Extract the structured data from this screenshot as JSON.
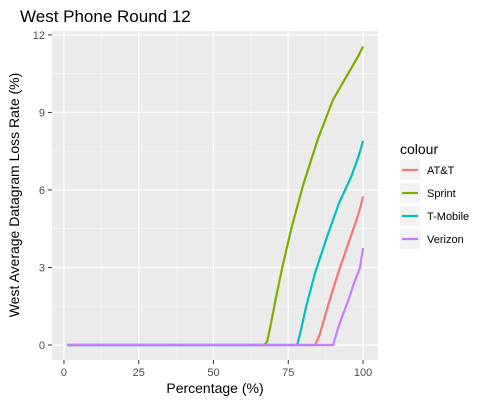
{
  "chart_data": {
    "type": "line",
    "title": "West Phone Round 12",
    "xlabel": "Percentage (%)",
    "ylabel": "West Average Datagram Loss Rate (%)",
    "xlim": [
      -4,
      105
    ],
    "ylim": [
      -0.58,
      12.15
    ],
    "x_ticks": [
      0,
      25,
      50,
      75,
      100
    ],
    "y_ticks": [
      0,
      3,
      6,
      9,
      12
    ],
    "x_tick_labels": [
      "0",
      "25",
      "50",
      "75",
      "100"
    ],
    "y_tick_labels": [
      "0",
      "3",
      "6",
      "9",
      "12"
    ],
    "grid": true,
    "legend": {
      "title": "colour",
      "position": "right"
    },
    "series": [
      {
        "name": "AT&T",
        "color": "#F8766D",
        "points": [
          [
            1,
            0
          ],
          [
            84,
            0
          ],
          [
            85.5,
            0.4
          ],
          [
            87,
            1.0
          ],
          [
            89,
            1.8
          ],
          [
            92,
            2.9
          ],
          [
            95,
            3.9
          ],
          [
            98,
            4.9
          ],
          [
            99.5,
            5.5
          ],
          [
            100,
            5.75
          ]
        ]
      },
      {
        "name": "Sprint",
        "color": "#7CAE00",
        "points": [
          [
            1,
            0
          ],
          [
            67,
            0
          ],
          [
            68,
            0.15
          ],
          [
            69.5,
            1.0
          ],
          [
            71,
            1.9
          ],
          [
            73,
            3.0
          ],
          [
            76,
            4.5
          ],
          [
            80,
            6.2
          ],
          [
            85,
            8.0
          ],
          [
            90,
            9.5
          ],
          [
            95,
            10.5
          ],
          [
            98.5,
            11.2
          ],
          [
            100,
            11.55
          ]
        ]
      },
      {
        "name": "T-Mobile",
        "color": "#00BFC4",
        "points": [
          [
            1,
            0
          ],
          [
            78,
            0
          ],
          [
            79.5,
            0.7
          ],
          [
            81,
            1.5
          ],
          [
            84,
            2.8
          ],
          [
            88,
            4.2
          ],
          [
            92,
            5.5
          ],
          [
            96,
            6.5
          ],
          [
            98.5,
            7.3
          ],
          [
            100,
            7.9
          ]
        ]
      },
      {
        "name": "Verizon",
        "color": "#C77CFF",
        "points": [
          [
            1,
            0
          ],
          [
            90,
            0
          ],
          [
            91.5,
            0.6
          ],
          [
            93,
            1.1
          ],
          [
            95,
            1.7
          ],
          [
            97,
            2.4
          ],
          [
            99,
            3.0
          ],
          [
            100,
            3.75
          ]
        ]
      }
    ]
  }
}
